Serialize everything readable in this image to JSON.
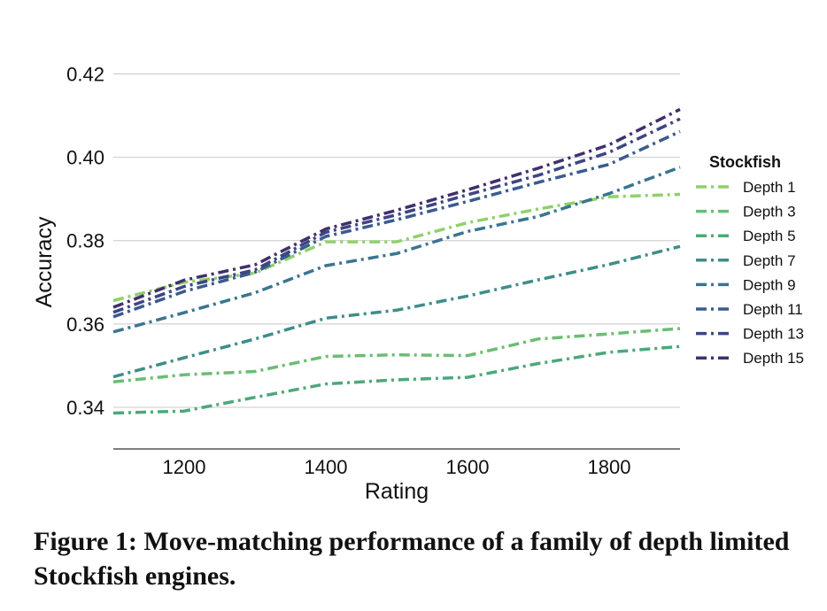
{
  "caption": "Figure 1: Move-matching performance of a family of depth limited Stockfish engines.",
  "chart_data": {
    "type": "line",
    "title": "",
    "xlabel": "Rating",
    "ylabel": "Accuracy",
    "xlim": [
      1100,
      1900
    ],
    "ylim": [
      0.33,
      0.425
    ],
    "xticks": [
      1200,
      1400,
      1600,
      1800
    ],
    "xtick_labels": [
      "1200",
      "1400",
      "1600",
      "1800"
    ],
    "yticks": [
      0.34,
      0.36,
      0.38,
      0.4,
      0.42
    ],
    "ytick_labels": [
      "0.34",
      "0.36",
      "0.38",
      "0.40",
      "0.42"
    ],
    "grid": "horizontal",
    "line_style": "dash-dot",
    "legend_title": "Stockfish",
    "legend_position": "right",
    "x": [
      1100,
      1200,
      1300,
      1400,
      1500,
      1600,
      1700,
      1800,
      1900
    ],
    "series": [
      {
        "name": "Depth 1",
        "color": "#8fd16a",
        "values": [
          0.3656,
          0.37,
          0.3722,
          0.3797,
          0.3797,
          0.3843,
          0.3876,
          0.3905,
          0.3911
        ]
      },
      {
        "name": "Depth 3",
        "color": "#6bbd73",
        "values": [
          0.3461,
          0.3478,
          0.3486,
          0.3522,
          0.3526,
          0.3524,
          0.3564,
          0.3576,
          0.3589
        ]
      },
      {
        "name": "Depth 5",
        "color": "#4ea77b",
        "values": [
          0.3386,
          0.3391,
          0.3424,
          0.3456,
          0.3466,
          0.3472,
          0.3505,
          0.3532,
          0.3546
        ]
      },
      {
        "name": "Depth 7",
        "color": "#3f8d88",
        "values": [
          0.3473,
          0.3519,
          0.3564,
          0.3614,
          0.3633,
          0.3667,
          0.3706,
          0.3743,
          0.3786
        ]
      },
      {
        "name": "Depth 9",
        "color": "#3a7590",
        "values": [
          0.3581,
          0.3627,
          0.3675,
          0.374,
          0.3769,
          0.3822,
          0.3858,
          0.3913,
          0.3976
        ]
      },
      {
        "name": "Depth 11",
        "color": "#3a5b8e",
        "values": [
          0.3617,
          0.3678,
          0.3724,
          0.381,
          0.385,
          0.3894,
          0.394,
          0.3983,
          0.4062
        ]
      },
      {
        "name": "Depth 13",
        "color": "#3d4583",
        "values": [
          0.3628,
          0.369,
          0.373,
          0.382,
          0.3862,
          0.391,
          0.3957,
          0.4012,
          0.4092
        ]
      },
      {
        "name": "Depth 15",
        "color": "#40306c",
        "values": [
          0.364,
          0.3705,
          0.3742,
          0.3828,
          0.3873,
          0.3922,
          0.3974,
          0.403,
          0.4115
        ]
      }
    ]
  }
}
